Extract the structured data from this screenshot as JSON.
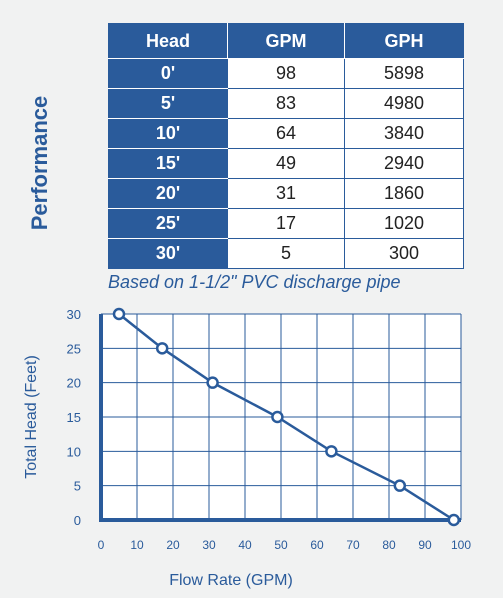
{
  "section_label": "Performance",
  "table": {
    "headers": [
      "Head",
      "GPM",
      "GPH"
    ],
    "rows": [
      [
        "0'",
        "98",
        "5898"
      ],
      [
        "5'",
        "83",
        "4980"
      ],
      [
        "10'",
        "64",
        "3840"
      ],
      [
        "15'",
        "49",
        "2940"
      ],
      [
        "20'",
        "31",
        "1860"
      ],
      [
        "25'",
        "17",
        "1020"
      ],
      [
        "30'",
        "5",
        "300"
      ]
    ]
  },
  "note": "Based on 1-1/2\" PVC discharge pipe",
  "colors": {
    "primary": "#2a5b9b",
    "background": "#f1f2f2",
    "cell": "#ffffff"
  },
  "chart_data": {
    "type": "line",
    "xlabel": "Flow Rate (GPM)",
    "ylabel": "Total Head (Feet)",
    "xlim": [
      0,
      100
    ],
    "ylim": [
      0,
      30
    ],
    "xticks": [
      0,
      10,
      20,
      30,
      40,
      50,
      60,
      70,
      80,
      90,
      100
    ],
    "yticks": [
      0,
      5,
      10,
      15,
      20,
      25,
      30
    ],
    "grid": true,
    "series": [
      {
        "x": [
          5,
          17,
          31,
          49,
          64,
          83,
          98
        ],
        "y": [
          30,
          25,
          20,
          15,
          10,
          5,
          0
        ]
      }
    ]
  }
}
